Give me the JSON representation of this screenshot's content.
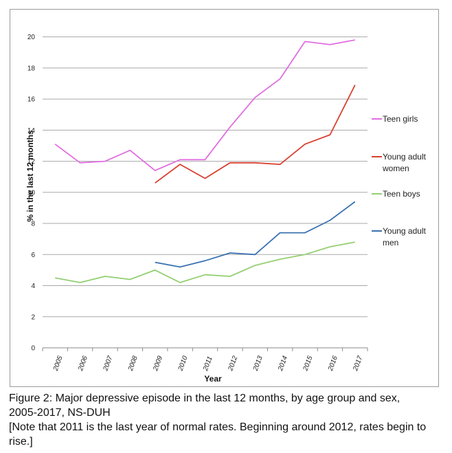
{
  "chart_data": {
    "type": "line",
    "xlabel": "Year",
    "ylabel": "% in the last 12 months",
    "ylim": [
      0,
      21
    ],
    "yticks": [
      "0",
      "2",
      "4",
      "6",
      "8",
      "10",
      "12",
      "14",
      "16",
      "18",
      "20"
    ],
    "categories": [
      "2005",
      "2006",
      "2007",
      "2008",
      "2009",
      "2010",
      "2011",
      "2012",
      "2013",
      "2014",
      "2015",
      "2016",
      "2017"
    ],
    "grid": "horizontal",
    "legend_position": "right",
    "series": [
      {
        "name": "Teen girls",
        "color": "#e06ee0",
        "values": [
          13.1,
          11.9,
          12.0,
          12.7,
          11.4,
          12.1,
          12.1,
          14.2,
          16.1,
          17.3,
          19.7,
          19.5,
          19.8
        ]
      },
      {
        "name": "Young adult women",
        "color": "#d9402f",
        "values": [
          null,
          null,
          null,
          null,
          10.6,
          11.8,
          10.9,
          11.9,
          11.9,
          11.8,
          13.1,
          13.7,
          16.9
        ]
      },
      {
        "name": "Teen boys",
        "color": "#93cf72",
        "values": [
          4.5,
          4.2,
          4.6,
          4.4,
          5.0,
          4.2,
          4.7,
          4.6,
          5.3,
          5.7,
          6.0,
          6.5,
          6.8
        ]
      },
      {
        "name": "Young adult men",
        "color": "#3a72b0",
        "values": [
          null,
          null,
          null,
          null,
          5.5,
          5.2,
          5.6,
          6.1,
          6.0,
          7.4,
          7.4,
          8.2,
          9.4
        ]
      }
    ]
  },
  "legend": {
    "items": [
      {
        "lines": [
          "Teen girls"
        ],
        "color": "#e06ee0"
      },
      {
        "lines": [
          "Young adult",
          "women"
        ],
        "color": "#d9402f"
      },
      {
        "lines": [
          "Teen boys"
        ],
        "color": "#93cf72"
      },
      {
        "lines": [
          "Young adult",
          "men"
        ],
        "color": "#3a72b0"
      }
    ]
  },
  "caption": {
    "line1": "Figure 2: Major depressive episode in the last 12 months, by age group and sex,",
    "line2": "2005-2017, NS-DUH",
    "line3": "[Note that 2011 is the last year of normal rates. Beginning around 2012, rates begin to",
    "line4": "rise.]"
  }
}
